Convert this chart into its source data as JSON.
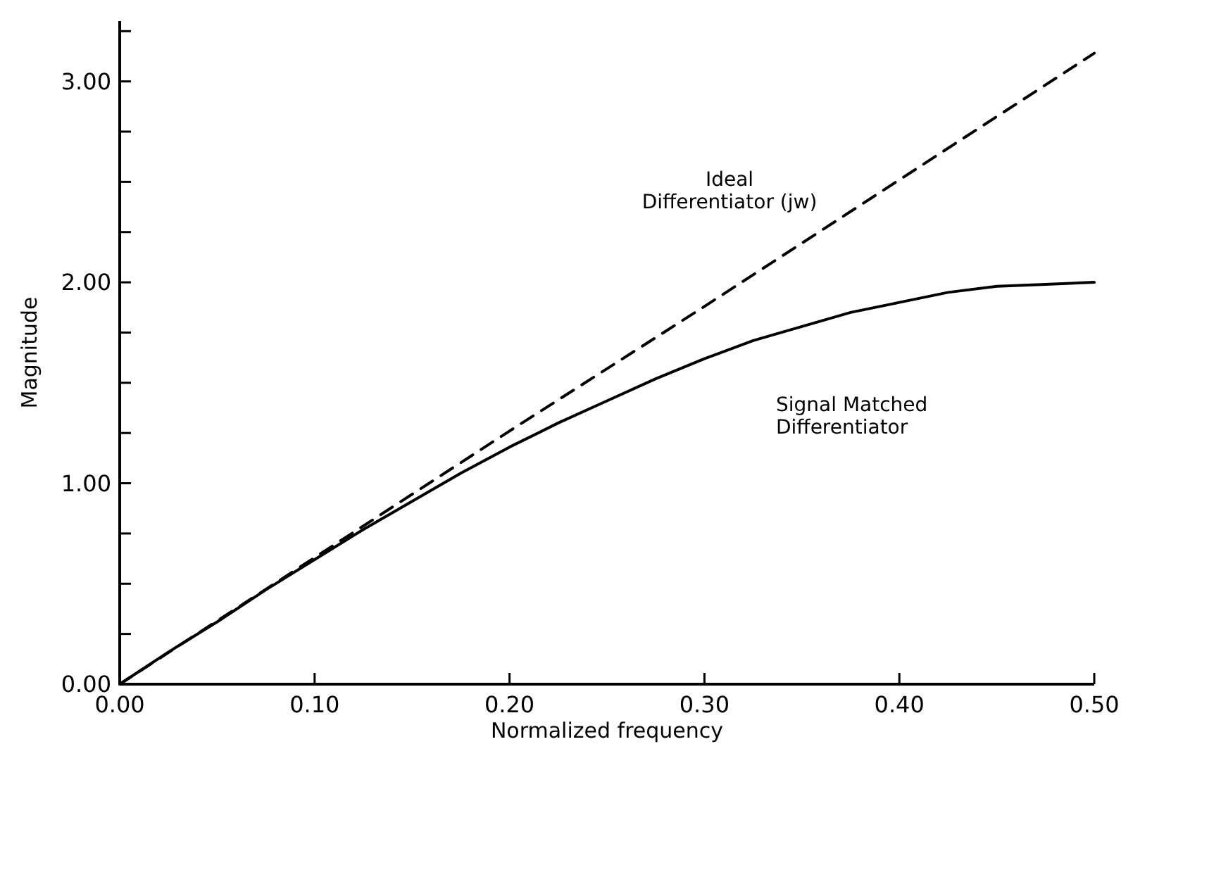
{
  "chart_data": {
    "type": "line",
    "xlabel": "Normalized frequency",
    "ylabel": "Magnitude",
    "xlim": [
      0,
      0.5
    ],
    "xticks": [
      {
        "value": 0,
        "label": "0.00"
      },
      {
        "value": 0.1,
        "label": "0.10"
      },
      {
        "value": 0.2,
        "label": "0.20"
      },
      {
        "value": 0.3,
        "label": "0.30"
      },
      {
        "value": 0.4,
        "label": "0.40"
      },
      {
        "value": 0.5,
        "label": "0.50"
      }
    ],
    "ylim": [
      0,
      3.3
    ],
    "yticks": [
      {
        "value": 0,
        "label": "0.00"
      },
      {
        "value": 0.25,
        "label": null
      },
      {
        "value": 0.5,
        "label": null
      },
      {
        "value": 0.75,
        "label": null
      },
      {
        "value": 1,
        "label": "1.00"
      },
      {
        "value": 1.25,
        "label": null
      },
      {
        "value": 1.5,
        "label": null
      },
      {
        "value": 1.75,
        "label": null
      },
      {
        "value": 2,
        "label": "2.00"
      },
      {
        "value": 2.25,
        "label": null
      },
      {
        "value": 2.5,
        "label": null
      },
      {
        "value": 2.75,
        "label": null
      },
      {
        "value": 3,
        "label": "3.00"
      },
      {
        "value": 3.25,
        "label": null
      }
    ],
    "grid": false,
    "marker": "none",
    "annotations": [
      "Ideal\nDifferentiator (jw)",
      "Signal Matched\nDifferentiator"
    ],
    "series": [
      {
        "color": "#000000",
        "line_style": "dashed",
        "x": [
          0,
          0.1,
          0.2,
          0.3,
          0.4,
          0.5
        ],
        "values": [
          0,
          0.63,
          1.26,
          1.88,
          2.51,
          3.14
        ]
      },
      {
        "color": "#000000",
        "line_style": "solid",
        "x": [
          0,
          0.025,
          0.05,
          0.075,
          0.1,
          0.125,
          0.15,
          0.175,
          0.2,
          0.225,
          0.25,
          0.275,
          0.3,
          0.325,
          0.35,
          0.375,
          0.4,
          0.425,
          0.45,
          0.475,
          0.5
        ],
        "values": [
          0,
          0.16,
          0.31,
          0.47,
          0.62,
          0.77,
          0.91,
          1.05,
          1.18,
          1.3,
          1.41,
          1.52,
          1.62,
          1.71,
          1.78,
          1.85,
          1.9,
          1.95,
          1.98,
          1.99,
          2.0
        ]
      }
    ]
  }
}
